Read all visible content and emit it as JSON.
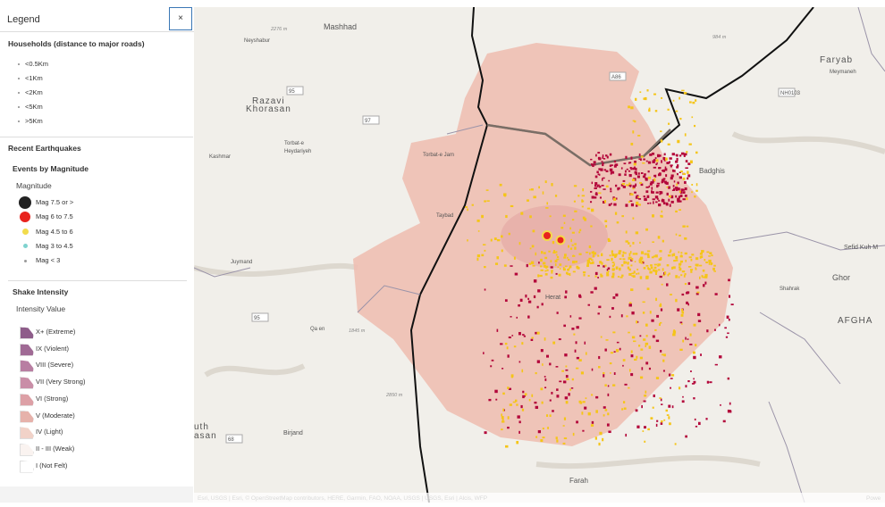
{
  "legend": {
    "title": "Legend",
    "close": "×",
    "households": {
      "title": "Households (distance to major roads)",
      "items": [
        "<0.5Km",
        "<1Km",
        "<2Km",
        "<5Km",
        ">5Km"
      ]
    },
    "earthquakes": {
      "title": "Recent Earthquakes",
      "subtitle": "Events by Magnitude",
      "field": "Magnitude",
      "items": [
        "Mag 7.5 or >",
        "Mag 6 to 7.5",
        "Mag 4.5 to 6",
        "Mag 3 to 4.5",
        "Mag < 3"
      ]
    },
    "shake": {
      "title": "Shake Intensity",
      "field": "Intensity Value",
      "items": [
        "X+ (Extreme)",
        "IX (Violent)",
        "VIII (Severe)",
        "VII (Very Strong)",
        "VI (Strong)",
        "V (Moderate)",
        "IV (Light)",
        "II - III (Weak)",
        "I (Not Felt)"
      ]
    }
  },
  "map": {
    "labels": [
      "Mashhad",
      "Neyshabur",
      "Razavi",
      "Khorasan",
      "Kashmar",
      "Torbat-e",
      "Heydariyeh",
      "Torbat-e Jam",
      "Taybad",
      "Juymand",
      "Qa en",
      "Birjand",
      "Faryab",
      "Meymaneh",
      "Ghor",
      "Shahrak",
      "AFGHA",
      "Farah",
      "Sefid Kuh M",
      "Badghis",
      "Herat",
      "uth",
      "asan"
    ],
    "roads": [
      "95",
      "97",
      "68",
      "A86",
      "NH0103",
      "95"
    ],
    "elevations": [
      "2276 m",
      "984 m",
      "1845 m",
      "2850 m"
    ],
    "attribution": "Esri, USGS | Esri, © OpenStreetMap contributors, HERE, Garmin, FAO, NOAA, USGS | USGS, Esri | Alcis, WFP",
    "powered": "Powe"
  }
}
